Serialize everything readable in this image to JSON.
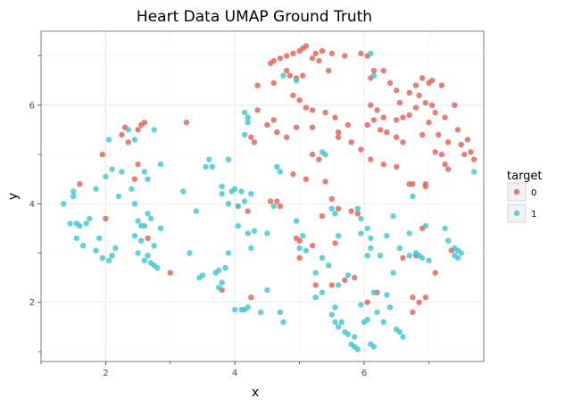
{
  "chart_data": {
    "type": "scatter",
    "title": "Heart Data UMAP Ground Truth",
    "xlabel": "x",
    "ylabel": "y",
    "xlim": [
      1.0,
      7.85
    ],
    "ylim": [
      0.8,
      7.5
    ],
    "xticks": [
      2,
      4,
      6
    ],
    "yticks": [
      2,
      4,
      6
    ],
    "x_tick_labels": [
      "2",
      "4",
      "6"
    ],
    "y_tick_labels": [
      "2",
      "4",
      "6"
    ],
    "grid": true,
    "legend": {
      "title": "target",
      "placement": "right"
    },
    "series": [
      {
        "name": "0",
        "color": "#E0685F",
        "points": [
          [
            4.55,
            6.85
          ],
          [
            4.7,
            6.95
          ],
          [
            4.8,
            7.0
          ],
          [
            4.9,
            7.05
          ],
          [
            5.0,
            7.1
          ],
          [
            5.05,
            7.15
          ],
          [
            5.1,
            7.2
          ],
          [
            5.2,
            6.95
          ],
          [
            5.25,
            7.05
          ],
          [
            5.35,
            7.1
          ],
          [
            5.5,
            7.05
          ],
          [
            5.7,
            7.0
          ],
          [
            5.95,
            7.05
          ],
          [
            6.05,
            7.0
          ],
          [
            4.6,
            6.9
          ],
          [
            4.8,
            6.7
          ],
          [
            4.85,
            6.6
          ],
          [
            4.95,
            6.55
          ],
          [
            5.05,
            6.6
          ],
          [
            5.3,
            6.9
          ],
          [
            5.45,
            6.7
          ],
          [
            6.1,
            6.55
          ],
          [
            6.15,
            6.7
          ],
          [
            6.3,
            6.7
          ],
          [
            6.4,
            6.45
          ],
          [
            6.5,
            6.3
          ],
          [
            4.35,
            6.4
          ],
          [
            4.6,
            6.45
          ],
          [
            4.9,
            6.2
          ],
          [
            5.0,
            6.1
          ],
          [
            5.1,
            5.95
          ],
          [
            5.2,
            5.9
          ],
          [
            5.4,
            5.85
          ],
          [
            5.55,
            5.75
          ],
          [
            5.75,
            5.6
          ],
          [
            6.1,
            6.0
          ],
          [
            6.2,
            5.9
          ],
          [
            6.3,
            5.75
          ],
          [
            6.5,
            5.7
          ],
          [
            4.35,
            5.9
          ],
          [
            4.5,
            5.6
          ],
          [
            4.6,
            5.7
          ],
          [
            4.65,
            5.45
          ],
          [
            4.8,
            5.35
          ],
          [
            4.95,
            5.55
          ],
          [
            5.2,
            5.55
          ],
          [
            5.6,
            5.45
          ],
          [
            5.8,
            5.25
          ],
          [
            5.95,
            5.1
          ],
          [
            6.05,
            5.6
          ],
          [
            6.15,
            5.7
          ],
          [
            6.25,
            5.5
          ],
          [
            6.35,
            5.45
          ],
          [
            6.5,
            5.35
          ],
          [
            6.6,
            5.25
          ],
          [
            6.1,
            4.9
          ],
          [
            6.3,
            4.8
          ],
          [
            6.5,
            4.75
          ],
          [
            5.2,
            5.0
          ],
          [
            5.3,
            4.9
          ],
          [
            4.9,
            4.6
          ],
          [
            5.1,
            4.5
          ],
          [
            5.4,
            4.45
          ],
          [
            4.65,
            4.05
          ],
          [
            4.7,
            3.95
          ],
          [
            5.5,
            4.1
          ],
          [
            5.6,
            3.9
          ],
          [
            5.35,
            3.75
          ],
          [
            5.8,
            3.85
          ],
          [
            5.9,
            3.8
          ],
          [
            5.55,
            3.2
          ],
          [
            5.0,
            3.25
          ],
          [
            4.95,
            3.3
          ],
          [
            5.2,
            3.15
          ],
          [
            5.0,
            2.9
          ],
          [
            5.5,
            2.35
          ],
          [
            5.25,
            2.35
          ],
          [
            5.7,
            2.45
          ],
          [
            5.85,
            2.5
          ],
          [
            6.05,
            2.0
          ],
          [
            6.2,
            2.2
          ],
          [
            6.75,
            1.8
          ],
          [
            6.85,
            2.0
          ],
          [
            6.95,
            2.1
          ],
          [
            7.1,
            2.6
          ],
          [
            6.8,
            2.95
          ],
          [
            6.9,
            3.5
          ],
          [
            6.7,
            4.4
          ],
          [
            6.95,
            4.4
          ],
          [
            6.95,
            4.35
          ],
          [
            6.8,
            6.4
          ],
          [
            6.9,
            6.55
          ],
          [
            7.0,
            6.45
          ],
          [
            7.05,
            6.5
          ],
          [
            6.7,
            6.25
          ],
          [
            6.85,
            6.2
          ],
          [
            6.95,
            6.05
          ],
          [
            7.05,
            6.0
          ],
          [
            7.2,
            6.4
          ],
          [
            7.4,
            6.0
          ],
          [
            6.55,
            6.05
          ],
          [
            6.6,
            5.75
          ],
          [
            6.8,
            5.95
          ],
          [
            6.7,
            5.8
          ],
          [
            6.9,
            5.4
          ],
          [
            7.1,
            5.85
          ],
          [
            7.25,
            5.75
          ],
          [
            7.0,
            5.65
          ],
          [
            7.15,
            5.4
          ],
          [
            7.3,
            5.25
          ],
          [
            7.45,
            5.5
          ],
          [
            7.5,
            5.2
          ],
          [
            7.6,
            5.3
          ],
          [
            7.1,
            5.05
          ],
          [
            7.2,
            5.0
          ],
          [
            7.55,
            5.0
          ],
          [
            7.65,
            5.05
          ],
          [
            7.7,
            4.9
          ],
          [
            7.25,
            4.8
          ],
          [
            6.75,
            4.4
          ],
          [
            1.6,
            4.4
          ],
          [
            1.95,
            5.0
          ],
          [
            2.0,
            3.7
          ],
          [
            2.25,
            5.4
          ],
          [
            2.3,
            5.55
          ],
          [
            2.35,
            5.25
          ],
          [
            2.45,
            4.5
          ],
          [
            2.55,
            5.6
          ],
          [
            2.6,
            5.65
          ],
          [
            2.5,
            5.5
          ],
          [
            2.5,
            4.8
          ],
          [
            2.65,
            3.3
          ],
          [
            3.0,
            2.6
          ],
          [
            3.25,
            5.65
          ],
          [
            4.05,
            3.95
          ],
          [
            4.2,
            3.85
          ],
          [
            3.8,
            2.25
          ],
          [
            4.25,
            2.1
          ],
          [
            4.25,
            5.35
          ],
          [
            4.3,
            5.25
          ],
          [
            4.55,
            4.05
          ],
          [
            7.35,
            3.05
          ],
          [
            7.3,
            4.7
          ],
          [
            5.6,
            5.35
          ],
          [
            6.75,
            2.1
          ],
          [
            6.6,
            2.9
          ]
        ]
      },
      {
        "name": "1",
        "color": "#48C9CE",
        "points": [
          [
            1.35,
            4.0
          ],
          [
            1.5,
            4.25
          ],
          [
            1.5,
            4.15
          ],
          [
            1.55,
            3.6
          ],
          [
            1.6,
            3.55
          ],
          [
            1.45,
            3.6
          ],
          [
            1.7,
            3.6
          ],
          [
            1.75,
            3.7
          ],
          [
            1.55,
            3.3
          ],
          [
            1.65,
            3.15
          ],
          [
            1.85,
            3.05
          ],
          [
            1.9,
            3.3
          ],
          [
            1.95,
            2.9
          ],
          [
            2.05,
            2.85
          ],
          [
            2.1,
            2.95
          ],
          [
            2.15,
            3.1
          ],
          [
            2.0,
            4.55
          ],
          [
            2.1,
            4.7
          ],
          [
            1.85,
            4.3
          ],
          [
            2.05,
            5.3
          ],
          [
            2.2,
            4.15
          ],
          [
            2.25,
            4.65
          ],
          [
            2.35,
            5.5
          ],
          [
            2.45,
            5.3
          ],
          [
            2.4,
            4.3
          ],
          [
            2.45,
            4.0
          ],
          [
            2.5,
            3.65
          ],
          [
            2.6,
            4.65
          ],
          [
            2.65,
            4.5
          ],
          [
            2.75,
            5.5
          ],
          [
            2.85,
            4.8
          ],
          [
            2.45,
            3.35
          ],
          [
            2.55,
            3.55
          ],
          [
            2.55,
            3.25
          ],
          [
            2.6,
            3.55
          ],
          [
            2.65,
            3.8
          ],
          [
            2.7,
            3.7
          ],
          [
            2.75,
            3.15
          ],
          [
            2.85,
            3.5
          ],
          [
            2.6,
            2.85
          ],
          [
            2.7,
            2.8
          ],
          [
            2.75,
            2.75
          ],
          [
            2.8,
            2.7
          ],
          [
            2.65,
            2.95
          ],
          [
            2.5,
            3.0
          ],
          [
            3.2,
            4.25
          ],
          [
            3.3,
            3.0
          ],
          [
            3.4,
            3.85
          ],
          [
            3.45,
            2.5
          ],
          [
            3.5,
            2.55
          ],
          [
            3.55,
            4.75
          ],
          [
            3.6,
            4.9
          ],
          [
            3.65,
            4.75
          ],
          [
            3.7,
            2.6
          ],
          [
            3.75,
            2.3
          ],
          [
            3.75,
            2.65
          ],
          [
            3.8,
            4.35
          ],
          [
            3.8,
            4.2
          ],
          [
            3.9,
            4.0
          ],
          [
            3.9,
            4.9
          ],
          [
            3.95,
            4.25
          ],
          [
            3.85,
            2.7
          ],
          [
            3.9,
            3.0
          ],
          [
            4.0,
            4.3
          ],
          [
            4.1,
            4.25
          ],
          [
            4.15,
            4.05
          ],
          [
            4.15,
            5.85
          ],
          [
            4.2,
            5.75
          ],
          [
            4.2,
            5.65
          ],
          [
            4.15,
            5.4
          ],
          [
            4.25,
            4.2
          ],
          [
            4.0,
            1.85
          ],
          [
            4.1,
            1.85
          ],
          [
            4.15,
            1.85
          ],
          [
            4.2,
            1.9
          ],
          [
            4.2,
            3.4
          ],
          [
            4.25,
            3.1
          ],
          [
            4.3,
            3.45
          ],
          [
            4.4,
            1.8
          ],
          [
            4.5,
            2.25
          ],
          [
            4.5,
            3.4
          ],
          [
            4.6,
            3.95
          ],
          [
            4.65,
            4.75
          ],
          [
            4.7,
            4.65
          ],
          [
            4.75,
            1.6
          ],
          [
            4.75,
            6.6
          ],
          [
            4.95,
            3.65
          ],
          [
            5.0,
            3.1
          ],
          [
            5.05,
            3.35
          ],
          [
            5.1,
            3.05
          ],
          [
            5.25,
            2.6
          ],
          [
            5.25,
            2.1
          ],
          [
            5.35,
            2.2
          ],
          [
            5.35,
            5.05
          ],
          [
            5.4,
            5.0
          ],
          [
            5.35,
            2.9
          ],
          [
            5.45,
            2.75
          ],
          [
            5.5,
            3.9
          ],
          [
            5.55,
            3.8
          ],
          [
            5.6,
            3.35
          ],
          [
            5.6,
            2.35
          ],
          [
            5.55,
            1.9
          ],
          [
            5.5,
            1.75
          ],
          [
            5.55,
            1.6
          ],
          [
            5.6,
            1.5
          ],
          [
            5.65,
            1.6
          ],
          [
            5.7,
            1.4
          ],
          [
            5.75,
            1.35
          ],
          [
            5.8,
            1.15
          ],
          [
            5.85,
            1.1
          ],
          [
            5.9,
            1.05
          ],
          [
            5.85,
            1.3
          ],
          [
            6.0,
            1.6
          ],
          [
            6.05,
            1.65
          ],
          [
            5.95,
            1.95
          ],
          [
            5.75,
            2.55
          ],
          [
            5.9,
            3.9
          ],
          [
            5.95,
            3.7
          ],
          [
            5.95,
            3.4
          ],
          [
            6.05,
            3.5
          ],
          [
            6.1,
            3.3
          ],
          [
            6.05,
            2.95
          ],
          [
            6.1,
            3.1
          ],
          [
            6.15,
            2.2
          ],
          [
            6.2,
            1.8
          ],
          [
            6.1,
            1.15
          ],
          [
            6.15,
            1.1
          ],
          [
            6.3,
            1.6
          ],
          [
            6.35,
            2.15
          ],
          [
            6.4,
            1.9
          ],
          [
            6.45,
            2.6
          ],
          [
            6.5,
            1.45
          ],
          [
            6.55,
            1.4
          ],
          [
            6.6,
            1.3
          ],
          [
            6.45,
            3.75
          ],
          [
            6.35,
            3.35
          ],
          [
            6.55,
            3.1
          ],
          [
            6.7,
            2.95
          ],
          [
            6.7,
            3.4
          ],
          [
            6.75,
            4.15
          ],
          [
            6.8,
            3.0
          ],
          [
            6.85,
            2.95
          ],
          [
            6.95,
            3.55
          ],
          [
            6.9,
            2.9
          ],
          [
            7.0,
            2.85
          ],
          [
            7.25,
            3.5
          ],
          [
            7.3,
            3.25
          ],
          [
            7.4,
            3.1
          ],
          [
            7.45,
            3.05
          ],
          [
            7.4,
            2.95
          ],
          [
            7.45,
            2.9
          ],
          [
            7.5,
            3.0
          ],
          [
            6.15,
            6.6
          ],
          [
            6.1,
            7.05
          ],
          [
            4.95,
            6.5
          ],
          [
            7.7,
            4.65
          ],
          [
            4.05,
            3.95
          ],
          [
            3.8,
            2.4
          ],
          [
            4.05,
            3.55
          ],
          [
            4.7,
            1.8
          ],
          [
            6.25,
            2.95
          ]
        ]
      }
    ]
  }
}
